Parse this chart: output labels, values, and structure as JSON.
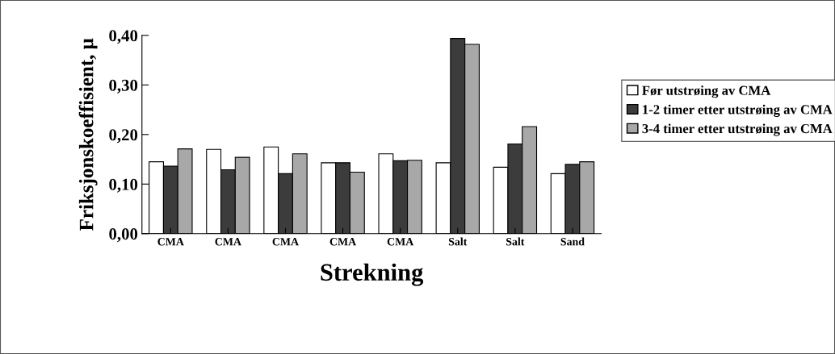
{
  "chart_data": {
    "type": "bar",
    "xlabel": "Strekning",
    "ylabel": "Friksjonskoeffisient, μ",
    "categories": [
      "CMA",
      "CMA",
      "CMA",
      "CMA",
      "CMA",
      "Salt",
      "Salt",
      "Sand"
    ],
    "series": [
      {
        "name": "Før utstrøing av CMA",
        "color": "#ffffff",
        "values": [
          0.145,
          0.17,
          0.175,
          0.143,
          0.161,
          0.143,
          0.134,
          0.121
        ]
      },
      {
        "name": "1-2 timer etter utstrøing av CMA",
        "color": "#3c3c3c",
        "values": [
          0.136,
          0.129,
          0.121,
          0.143,
          0.147,
          0.394,
          0.181,
          0.14
        ]
      },
      {
        "name": "3-4 timer etter utstrøing av CMA",
        "color": "#a8a8a8",
        "values": [
          0.171,
          0.154,
          0.161,
          0.124,
          0.148,
          0.382,
          0.216,
          0.145
        ]
      }
    ],
    "ylim": [
      0,
      0.4
    ],
    "yticks": [
      {
        "value": 0,
        "label": "0,00"
      },
      {
        "value": 0.1,
        "label": "0,10"
      },
      {
        "value": 0.2,
        "label": "0,20"
      },
      {
        "value": 0.3,
        "label": "0,30"
      },
      {
        "value": 0.4,
        "label": "0,40"
      }
    ],
    "grid": false,
    "legend": "right"
  }
}
